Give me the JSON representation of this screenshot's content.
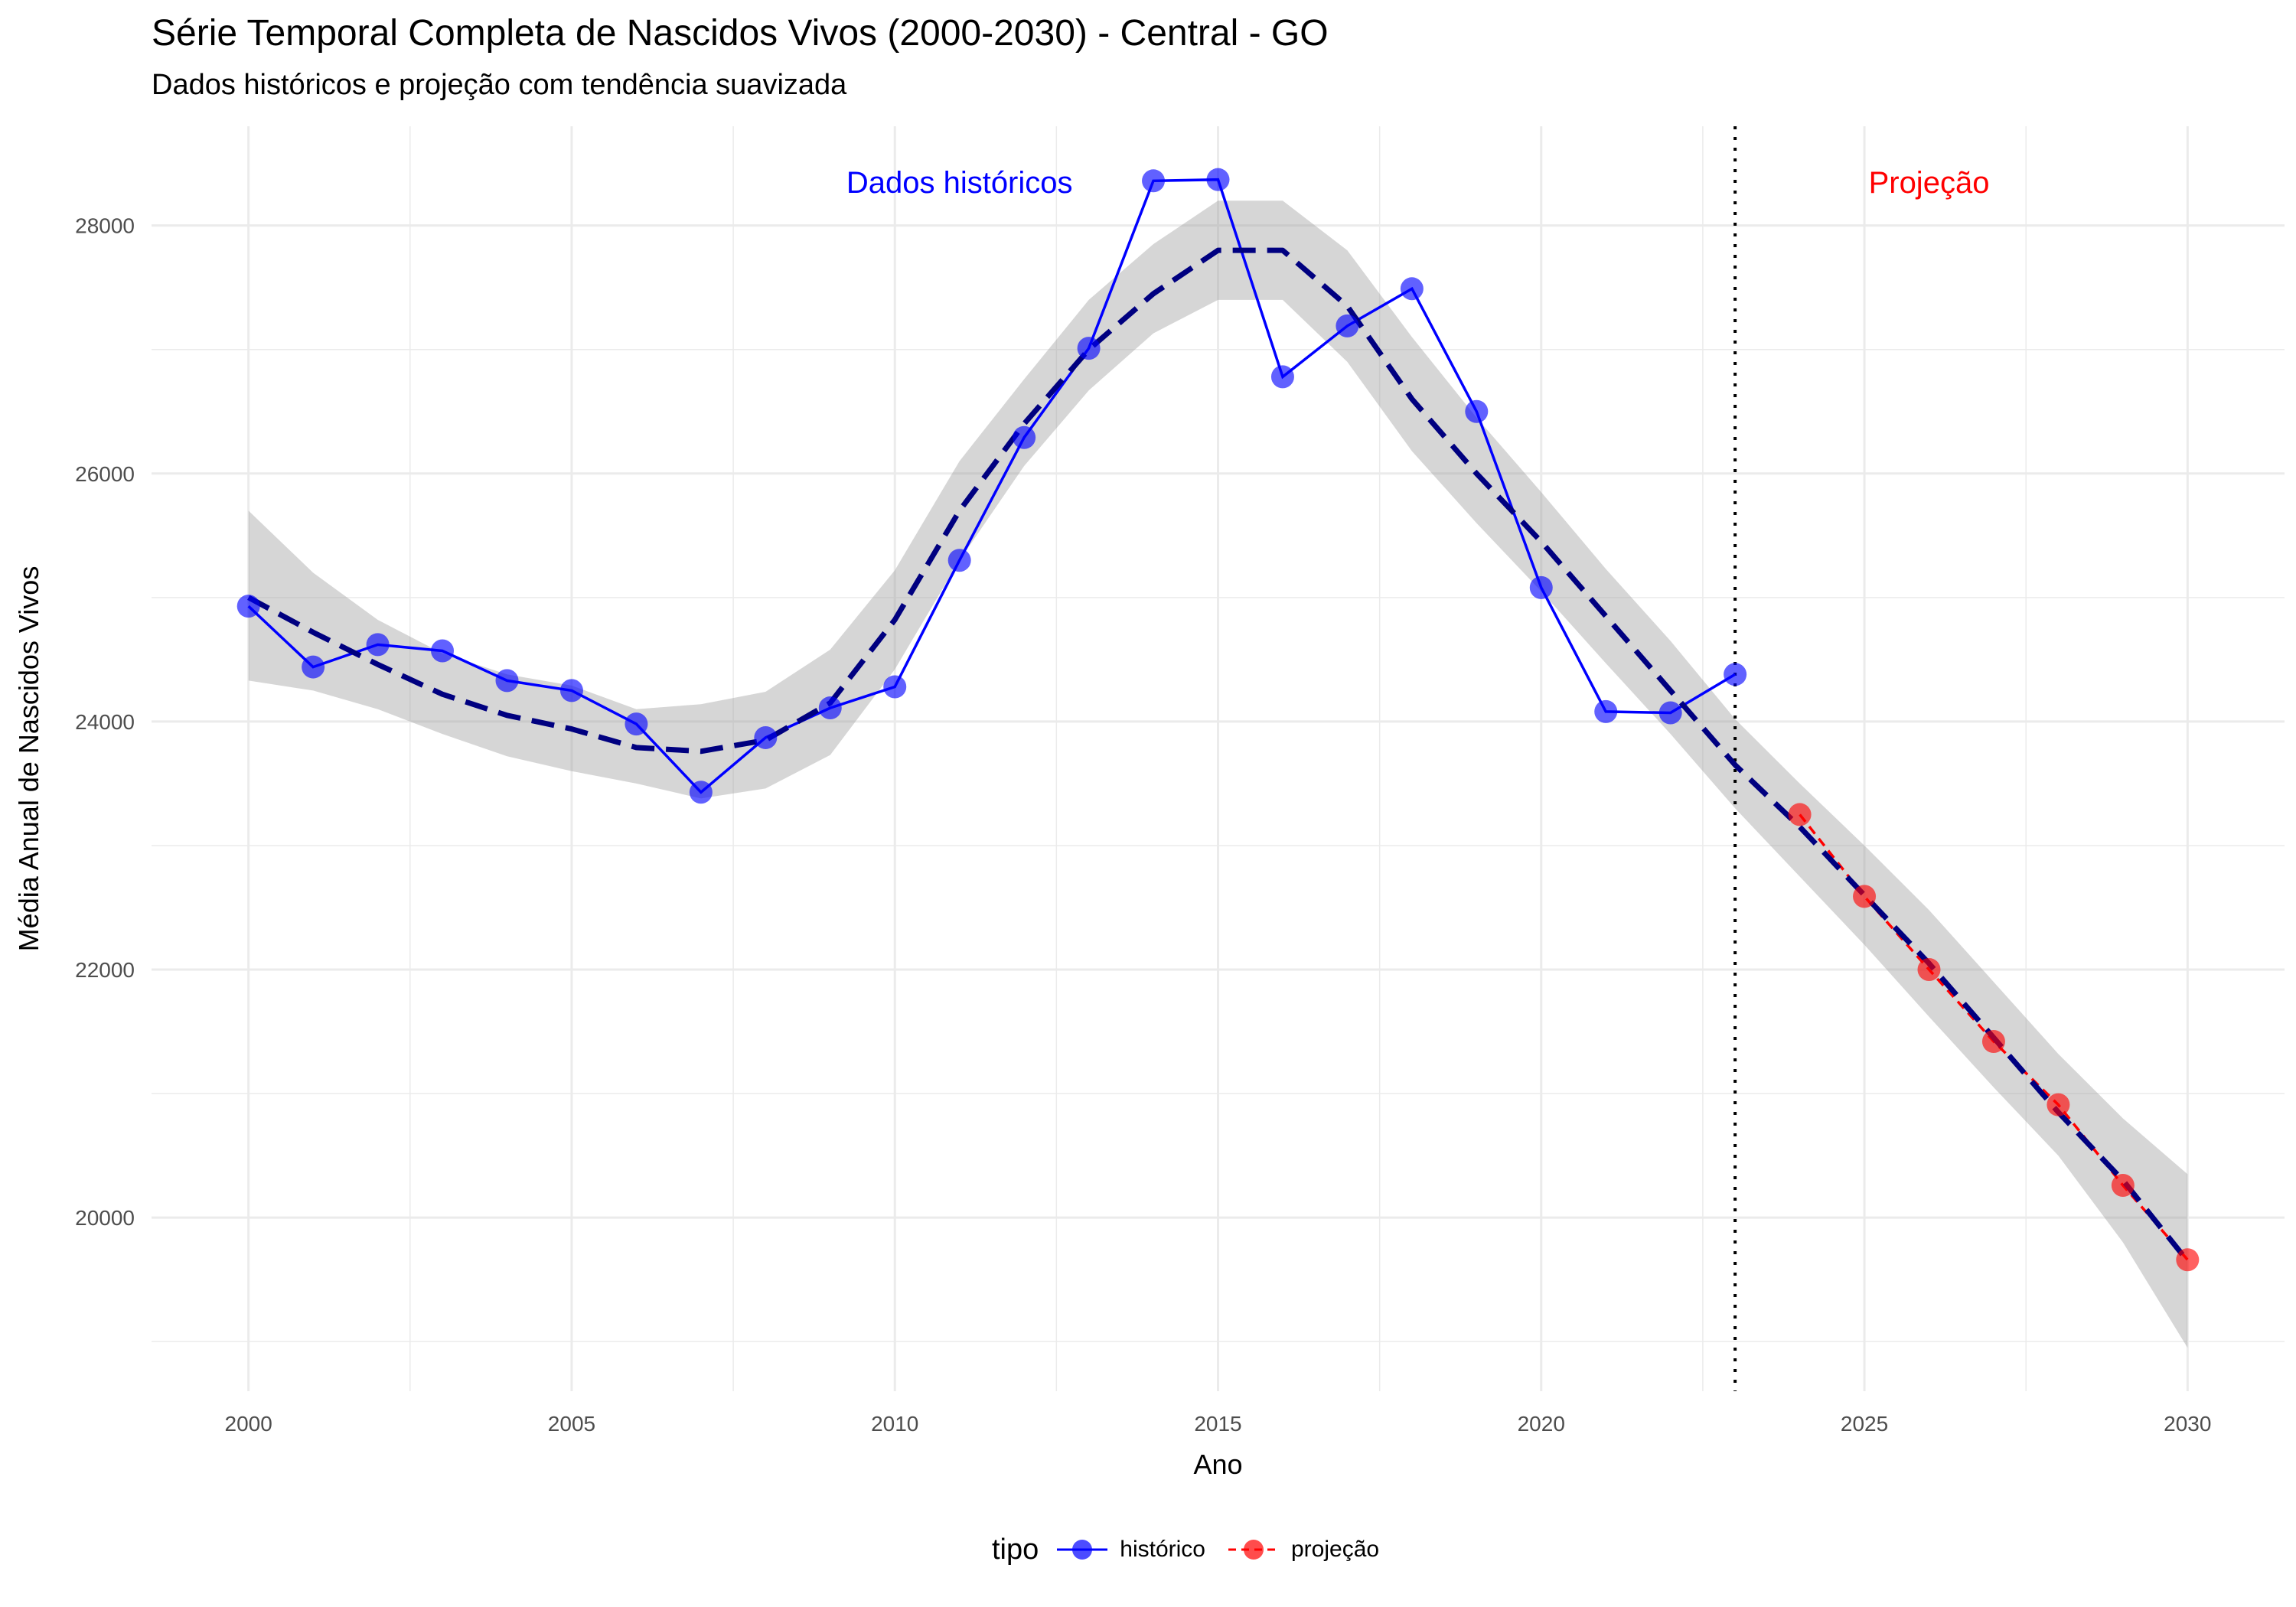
{
  "chart_data": {
    "type": "line",
    "title": "Série Temporal Completa de Nascidos Vivos (2000-2030) -  Central - GO",
    "subtitle": "Dados históricos e projeção com tendência suavizada",
    "xlabel": "Ano",
    "ylabel": "Média Anual de Nascidos Vivos",
    "xlim": [
      1998.5,
      2031.5
    ],
    "ylim": [
      18600,
      28800
    ],
    "x_ticks": [
      2000,
      2005,
      2010,
      2015,
      2020,
      2025,
      2030
    ],
    "y_ticks": [
      20000,
      22000,
      24000,
      26000,
      28000
    ],
    "grid": true,
    "vline_x": 2023,
    "annotations": [
      {
        "text": "Dados históricos",
        "x": 2011,
        "y": 28350,
        "color": "#0000ff"
      },
      {
        "text": "Projeção",
        "x": 2026,
        "y": 28350,
        "color": "#ff0000"
      }
    ],
    "legend": {
      "title": "tipo",
      "placement": "bottom",
      "entries": [
        {
          "label": "histórico",
          "color": "#0000ff"
        },
        {
          "label": "projeção",
          "color": "#ff0000"
        }
      ]
    },
    "series": [
      {
        "name": "histórico",
        "color": "#0000ff",
        "x": [
          2000,
          2001,
          2002,
          2003,
          2004,
          2005,
          2006,
          2007,
          2008,
          2009,
          2010,
          2011,
          2012,
          2013,
          2014,
          2015,
          2016,
          2017,
          2018,
          2019,
          2020,
          2021,
          2022,
          2023
        ],
        "values": [
          24930,
          24440,
          24620,
          24570,
          24330,
          24250,
          23980,
          23430,
          23870,
          24110,
          24280,
          25300,
          26290,
          27010,
          28360,
          28370,
          26780,
          27190,
          27490,
          26500,
          25080,
          24080,
          24070,
          24380
        ]
      },
      {
        "name": "projeção",
        "color": "#ff0000",
        "x": [
          2024,
          2025,
          2026,
          2027,
          2028,
          2029,
          2030
        ],
        "values": [
          23250,
          22590,
          22000,
          21420,
          20910,
          20260,
          19660
        ]
      }
    ],
    "trend": {
      "color": "#000080",
      "x": [
        2000,
        2001,
        2002,
        2003,
        2004,
        2005,
        2006,
        2007,
        2008,
        2009,
        2010,
        2011,
        2012,
        2013,
        2014,
        2015,
        2016,
        2017,
        2018,
        2019,
        2020,
        2021,
        2022,
        2023,
        2024,
        2025,
        2026,
        2027,
        2028,
        2029,
        2030
      ],
      "values": [
        25000,
        24720,
        24460,
        24220,
        24050,
        23940,
        23790,
        23760,
        23850,
        24150,
        24820,
        25700,
        26400,
        27000,
        27450,
        27800,
        27800,
        27350,
        26600,
        26000,
        25450,
        24850,
        24250,
        23650,
        23150,
        22600,
        22050,
        21450,
        20850,
        20300,
        19650
      ],
      "band_lower": [
        24330,
        24250,
        24100,
        23900,
        23720,
        23600,
        23500,
        23380,
        23460,
        23730,
        24420,
        25300,
        26060,
        26670,
        27130,
        27400,
        27400,
        26900,
        26180,
        25600,
        25050,
        24470,
        23900,
        23300,
        22750,
        22200,
        21620,
        21050,
        20500,
        19800,
        18950
      ],
      "band_upper": [
        25700,
        25200,
        24820,
        24550,
        24380,
        24290,
        24100,
        24140,
        24240,
        24580,
        25220,
        26100,
        26760,
        27400,
        27850,
        28200,
        28200,
        27800,
        27100,
        26450,
        25850,
        25230,
        24650,
        24020,
        23500,
        23000,
        22480,
        21900,
        21320,
        20800,
        20350
      ]
    }
  }
}
